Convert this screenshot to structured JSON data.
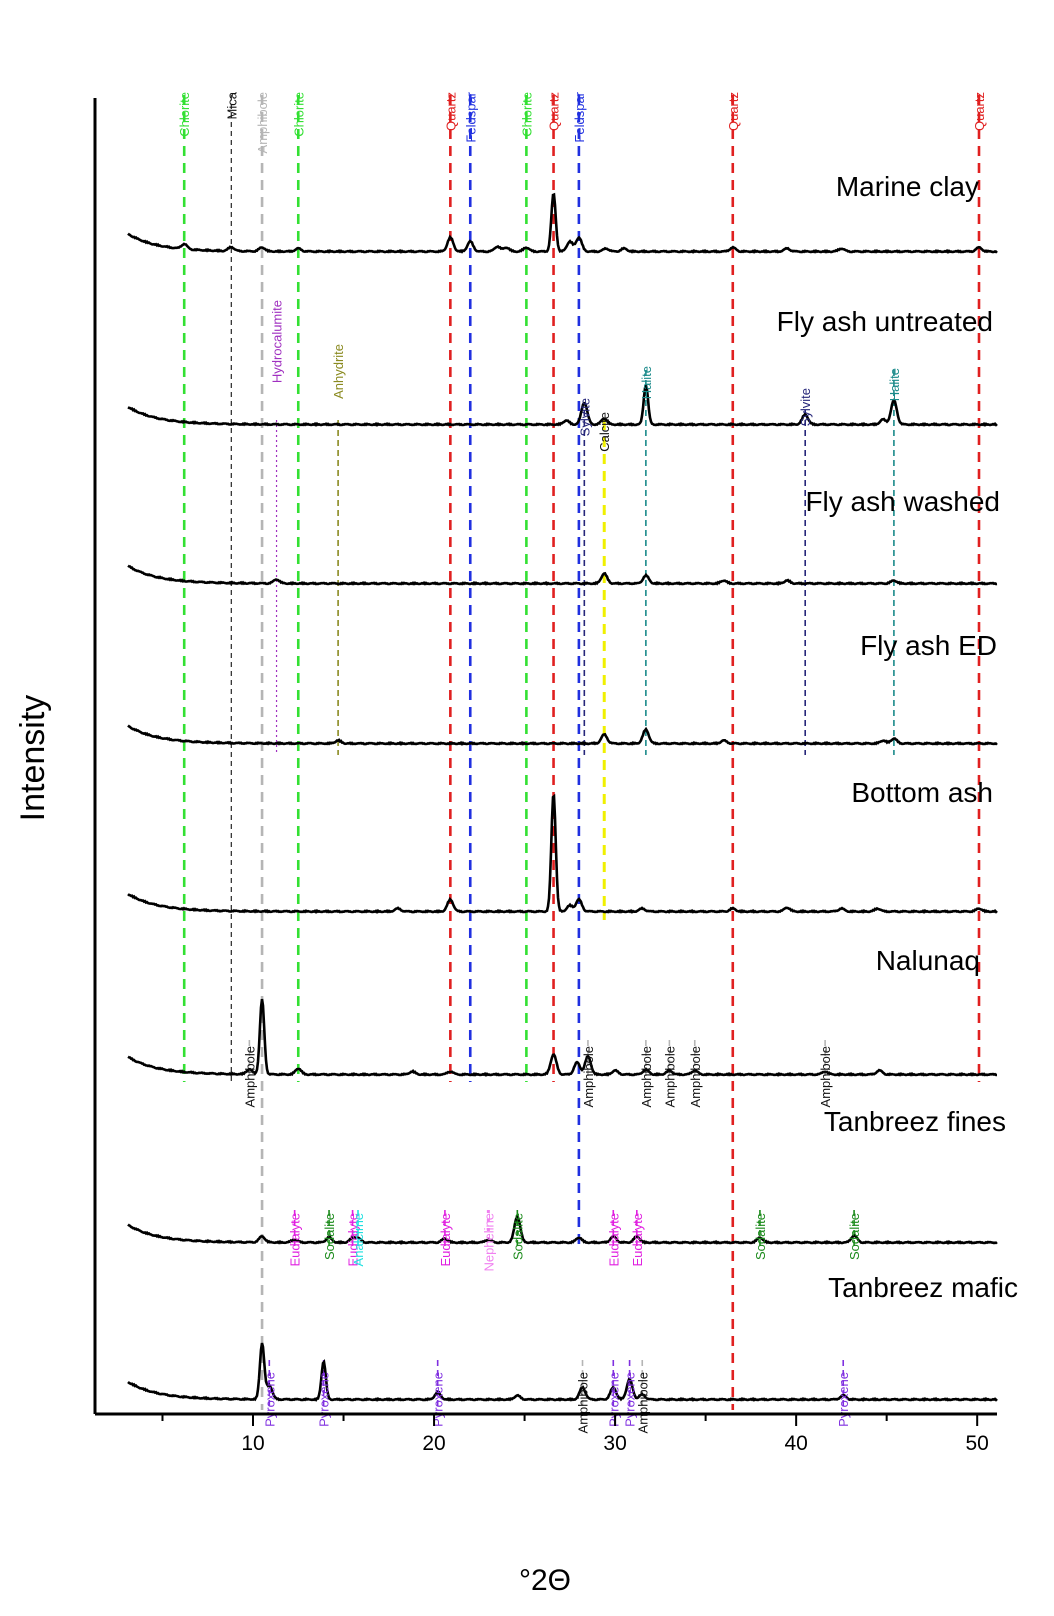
{
  "chart_data": {
    "type": "line",
    "xlabel": "°2Θ",
    "ylabel": "Intensity",
    "xlim": [
      4,
      51
    ],
    "x_ticks": [
      "10",
      "20",
      "30",
      "40",
      "50"
    ],
    "colors": {
      "green": "#33e033",
      "gray": "#b5b5b5",
      "black": "#111111",
      "red": "#e02020",
      "blue": "#2030e0",
      "purple": "#a030c0",
      "olive": "#8a8a20",
      "teal": "#1a8a8a",
      "navy": "#26267a",
      "yellow": "#f0f000",
      "magenta": "#e020e0",
      "cyan": "#20e0e0",
      "pink": "#f080f0",
      "dkgreen": "#1a8a1a",
      "violet": "#8030e0"
    },
    "series": [
      {
        "name": "Marine clay",
        "base": 0.0,
        "peaks": [
          [
            6.2,
            5
          ],
          [
            8.8,
            4
          ],
          [
            10.5,
            4
          ],
          [
            12.5,
            3
          ],
          [
            20.9,
            14
          ],
          [
            22.0,
            10
          ],
          [
            23.5,
            5
          ],
          [
            24.0,
            4
          ],
          [
            25.1,
            4
          ],
          [
            26.6,
            58
          ],
          [
            27.5,
            10
          ],
          [
            28.0,
            14
          ],
          [
            29.5,
            3
          ],
          [
            30.5,
            3
          ],
          [
            36.5,
            4
          ],
          [
            39.5,
            3
          ],
          [
            42.5,
            3
          ],
          [
            50.1,
            4
          ]
        ]
      },
      {
        "name": "Fly ash untreated",
        "base": 0.0,
        "peaks": [
          [
            27.3,
            4
          ],
          [
            28.3,
            22
          ],
          [
            29.4,
            6
          ],
          [
            31.7,
            40
          ],
          [
            40.5,
            10
          ],
          [
            44.8,
            5
          ],
          [
            45.4,
            24
          ]
        ]
      },
      {
        "name": "Fly ash washed",
        "base": 0.0,
        "peaks": [
          [
            11.3,
            4
          ],
          [
            29.4,
            10
          ],
          [
            31.7,
            8
          ],
          [
            36.0,
            3
          ],
          [
            39.5,
            3
          ],
          [
            45.4,
            3
          ]
        ]
      },
      {
        "name": "Fly ash ED",
        "base": 0.0,
        "peaks": [
          [
            14.7,
            3
          ],
          [
            29.4,
            9
          ],
          [
            31.7,
            14
          ],
          [
            36.0,
            3
          ],
          [
            44.8,
            3
          ],
          [
            45.4,
            5
          ]
        ]
      },
      {
        "name": "Bottom ash",
        "base": 0.0,
        "peaks": [
          [
            18.0,
            3
          ],
          [
            20.9,
            12
          ],
          [
            26.6,
            118
          ],
          [
            27.5,
            6
          ],
          [
            28.0,
            12
          ],
          [
            31.5,
            3
          ],
          [
            36.5,
            3
          ],
          [
            39.5,
            4
          ],
          [
            42.5,
            3
          ],
          [
            44.5,
            3
          ],
          [
            50.1,
            3
          ]
        ]
      },
      {
        "name": "Nalunaq",
        "base": 0.0,
        "peaks": [
          [
            9.8,
            5
          ],
          [
            10.5,
            75
          ],
          [
            12.5,
            6
          ],
          [
            18.8,
            3
          ],
          [
            20.9,
            3
          ],
          [
            26.6,
            20
          ],
          [
            27.9,
            12
          ],
          [
            28.5,
            18
          ],
          [
            30.0,
            4
          ],
          [
            31.7,
            5
          ],
          [
            33.0,
            4
          ],
          [
            34.4,
            4
          ],
          [
            41.6,
            3
          ],
          [
            44.6,
            4
          ]
        ]
      },
      {
        "name": "Tanbreez fines",
        "base": 0.0,
        "peaks": [
          [
            10.5,
            6
          ],
          [
            12.3,
            3
          ],
          [
            14.2,
            5
          ],
          [
            15.5,
            4
          ],
          [
            15.8,
            4
          ],
          [
            20.6,
            4
          ],
          [
            23.0,
            3
          ],
          [
            24.6,
            26
          ],
          [
            28.0,
            5
          ],
          [
            29.9,
            6
          ],
          [
            31.2,
            6
          ],
          [
            38.0,
            5
          ],
          [
            43.2,
            7
          ]
        ]
      },
      {
        "name": "Tanbreez mafic",
        "base": 0.0,
        "peaks": [
          [
            10.5,
            56
          ],
          [
            10.9,
            14
          ],
          [
            13.9,
            38
          ],
          [
            20.2,
            7
          ],
          [
            24.6,
            4
          ],
          [
            28.2,
            12
          ],
          [
            29.9,
            12
          ],
          [
            30.8,
            20
          ],
          [
            31.5,
            5
          ],
          [
            42.6,
            4
          ]
        ]
      }
    ],
    "sample_labels": [
      "Marine clay",
      "Fly ash untreated",
      "Fly ash washed",
      "Fly ash ED",
      "Bottom ash",
      "Nalunaq",
      "Tanbreez fines",
      "Tanbreez mafic"
    ],
    "reference_lines": [
      {
        "x": 6.2,
        "color": "green",
        "style": "dash",
        "label": "Chlorite",
        "span": "top"
      },
      {
        "x": 8.8,
        "color": "black",
        "style": "thin",
        "label": "Mica",
        "span": "top"
      },
      {
        "x": 10.5,
        "color": "gray",
        "style": "dash",
        "label": "Amphibole",
        "span": "full"
      },
      {
        "x": 12.5,
        "color": "green",
        "style": "dash",
        "label": "Chlorite",
        "span": "top"
      },
      {
        "x": 20.9,
        "color": "red",
        "style": "dash",
        "label": "Quartz",
        "span": "top"
      },
      {
        "x": 22.0,
        "color": "blue",
        "style": "dash",
        "label": "Feldspar",
        "span": "top"
      },
      {
        "x": 25.1,
        "color": "green",
        "style": "dash",
        "label": "Chlorite",
        "span": "top"
      },
      {
        "x": 26.6,
        "color": "red",
        "style": "dash",
        "label": "Quartz",
        "span": "top"
      },
      {
        "x": 28.0,
        "color": "blue",
        "style": "dash",
        "label": "Feldspar",
        "span": "long"
      },
      {
        "x": 36.5,
        "color": "red",
        "style": "dash",
        "label": "Quartz",
        "span": "full"
      },
      {
        "x": 50.1,
        "color": "red",
        "style": "dash",
        "label": "Quartz",
        "span": "top"
      },
      {
        "x": 11.3,
        "color": "purple",
        "style": "dot",
        "label": "Hydrocalumite",
        "span": "flyash"
      },
      {
        "x": 14.7,
        "color": "olive",
        "style": "dash",
        "label": "Anhydrite",
        "span": "flyash"
      },
      {
        "x": 28.3,
        "color": "navy",
        "style": "dash",
        "label": "Sylvite",
        "span": "flyash"
      },
      {
        "x": 29.4,
        "color": "yellow",
        "style": "dash",
        "label": "Calcite",
        "span": "bottom"
      },
      {
        "x": 31.7,
        "color": "teal",
        "style": "dash",
        "label": "Halite",
        "span": "flyash"
      },
      {
        "x": 40.5,
        "color": "navy",
        "style": "dash",
        "label": "Sylvite",
        "span": "flyash"
      },
      {
        "x": 45.4,
        "color": "teal",
        "style": "dash",
        "label": "Halite",
        "span": "flyash"
      }
    ],
    "peak_markers": [
      {
        "x": 9.8,
        "color": "gray",
        "label": "Amphibole",
        "row": 5
      },
      {
        "x": 28.5,
        "color": "gray",
        "label": "Amphibole",
        "row": 5
      },
      {
        "x": 31.7,
        "color": "gray",
        "label": "Amphibole",
        "row": 5
      },
      {
        "x": 33.0,
        "color": "gray",
        "label": "Amphibole",
        "row": 5
      },
      {
        "x": 34.4,
        "color": "gray",
        "label": "Amphibole",
        "row": 5
      },
      {
        "x": 41.6,
        "color": "gray",
        "label": "Amphibole",
        "row": 5
      },
      {
        "x": 12.3,
        "color": "magenta",
        "label": "Eudialyte",
        "row": 6
      },
      {
        "x": 14.2,
        "color": "dkgreen",
        "label": "Sodalite",
        "row": 6
      },
      {
        "x": 15.5,
        "color": "magenta",
        "label": "Eudialyte",
        "row": 6
      },
      {
        "x": 15.8,
        "color": "cyan",
        "label": "Analcime",
        "row": 6
      },
      {
        "x": 20.6,
        "color": "magenta",
        "label": "Eudialyte",
        "row": 6
      },
      {
        "x": 23.0,
        "color": "pink",
        "label": "Nepheline",
        "row": 6
      },
      {
        "x": 24.6,
        "color": "dkgreen",
        "label": "Sodalite",
        "row": 6
      },
      {
        "x": 29.9,
        "color": "magenta",
        "label": "Eudialyte",
        "row": 6
      },
      {
        "x": 31.2,
        "color": "magenta",
        "label": "Eudialyte",
        "row": 6
      },
      {
        "x": 38.0,
        "color": "dkgreen",
        "label": "Sodalite",
        "row": 6
      },
      {
        "x": 43.2,
        "color": "dkgreen",
        "label": "Sodalite",
        "row": 6
      },
      {
        "x": 10.9,
        "color": "violet",
        "label": "Pyroxene",
        "row": 7
      },
      {
        "x": 13.9,
        "color": "violet",
        "label": "Pyroxene",
        "row": 7
      },
      {
        "x": 20.2,
        "color": "violet",
        "label": "Pyroxene",
        "row": 7
      },
      {
        "x": 28.2,
        "color": "gray",
        "label": "Amphibole",
        "row": 7
      },
      {
        "x": 29.9,
        "color": "violet",
        "label": "Pyroxene",
        "row": 7
      },
      {
        "x": 30.8,
        "color": "violet",
        "label": "Pyroxene",
        "row": 7
      },
      {
        "x": 31.5,
        "color": "gray",
        "label": "Amphibole",
        "row": 7
      },
      {
        "x": 42.6,
        "color": "violet",
        "label": "Pyroxene",
        "row": 7
      }
    ]
  }
}
